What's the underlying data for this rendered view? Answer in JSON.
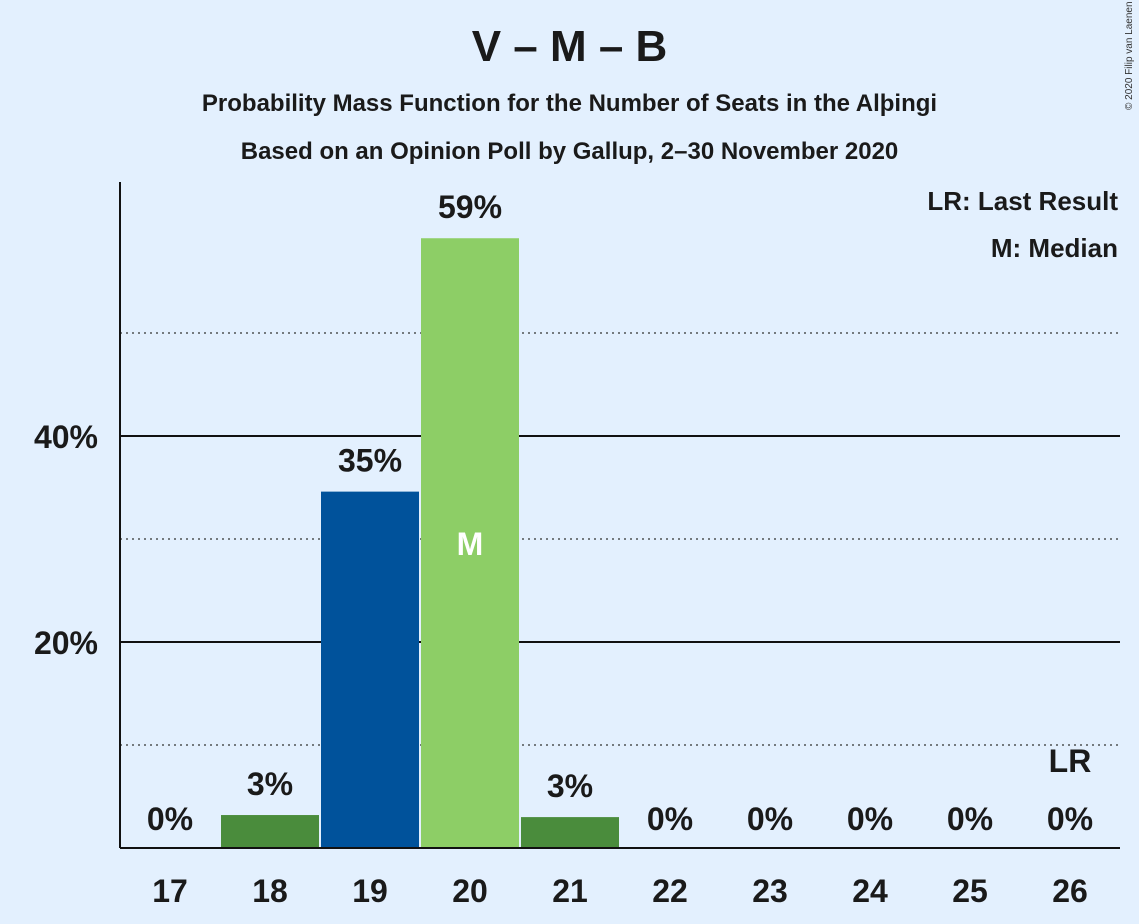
{
  "chart_data": {
    "type": "bar",
    "title": "V – M – B",
    "subtitle_1": "Probability Mass Function for the Number of Seats in the Alþingi",
    "subtitle_2": "Based on an Opinion Poll by Gallup, 2–30 November 2020",
    "copyright": "© 2020 Filip van Laenen",
    "categories": [
      "17",
      "18",
      "19",
      "20",
      "21",
      "22",
      "23",
      "24",
      "25",
      "26"
    ],
    "values": [
      0,
      3.2,
      34.6,
      59.2,
      3.0,
      0,
      0,
      0,
      0,
      0
    ],
    "value_labels": [
      "0%",
      "3%",
      "35%",
      "59%",
      "3%",
      "0%",
      "0%",
      "0%",
      "0%",
      "0%"
    ],
    "bar_colors": [
      "#4a8c3c",
      "#4a8c3c",
      "#00529b",
      "#8dce66",
      "#4a8c3c",
      "#4a8c3c",
      "#4a8c3c",
      "#4a8c3c",
      "#4a8c3c",
      "#4a8c3c"
    ],
    "median_category": "20",
    "median_marker": "M",
    "last_result_category": "26",
    "last_result_marker": "LR",
    "ylim": [
      0,
      65
    ],
    "y_major_ticks": [
      20,
      40
    ],
    "y_major_labels": [
      "20%",
      "40%"
    ],
    "y_minor_ticks": [
      10,
      30,
      50
    ],
    "legend": [
      "LR: Last Result",
      "M: Median"
    ],
    "legend_position": "top-right",
    "grid": true
  }
}
